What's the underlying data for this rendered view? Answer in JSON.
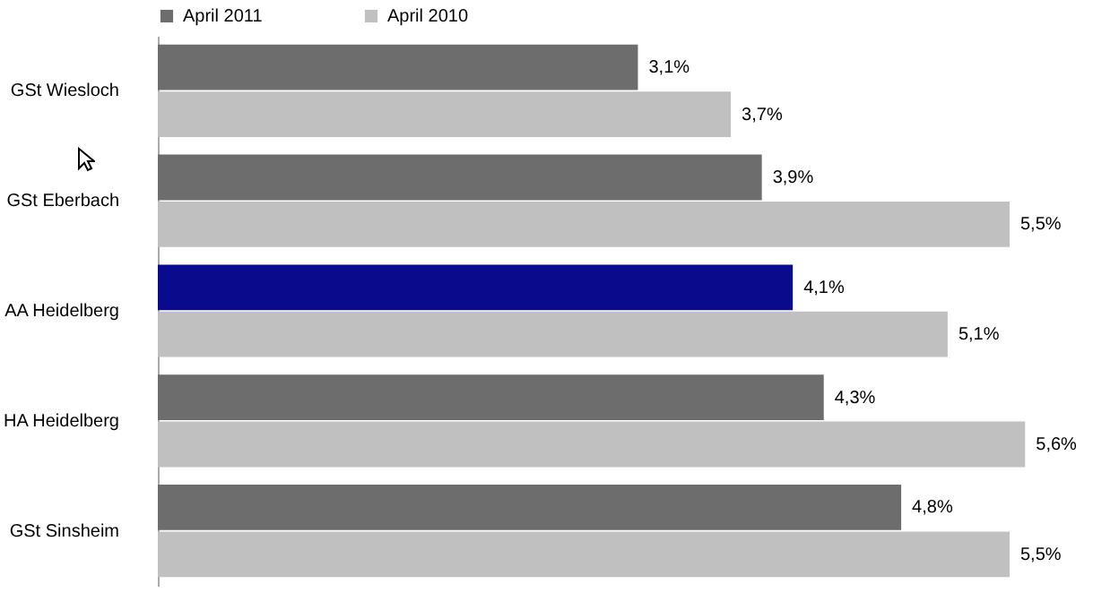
{
  "chart_data": {
    "type": "bar",
    "orientation": "horizontal",
    "categories": [
      "GSt Wiesloch",
      "GSt Eberbach",
      "AA Heidelberg",
      "HA Heidelberg",
      "GSt Sinsheim"
    ],
    "series": [
      {
        "name": "April 2011",
        "color": "#6d6d6d",
        "colors": [
          "#6d6d6d",
          "#6d6d6d",
          "#0a0a8c",
          "#6d6d6d",
          "#6d6d6d"
        ],
        "values": [
          3.1,
          3.9,
          4.1,
          4.3,
          4.8
        ],
        "value_labels": [
          "3,1%",
          "3,9%",
          "4,1%",
          "4,3%",
          "4,8%"
        ]
      },
      {
        "name": "April 2010",
        "color": "#c0c0c0",
        "values": [
          3.7,
          5.5,
          5.1,
          5.6,
          5.5
        ],
        "value_labels": [
          "3,7%",
          "5,5%",
          "5,1%",
          "5,6%",
          "5,5%"
        ]
      }
    ],
    "legend": "top"
  }
}
